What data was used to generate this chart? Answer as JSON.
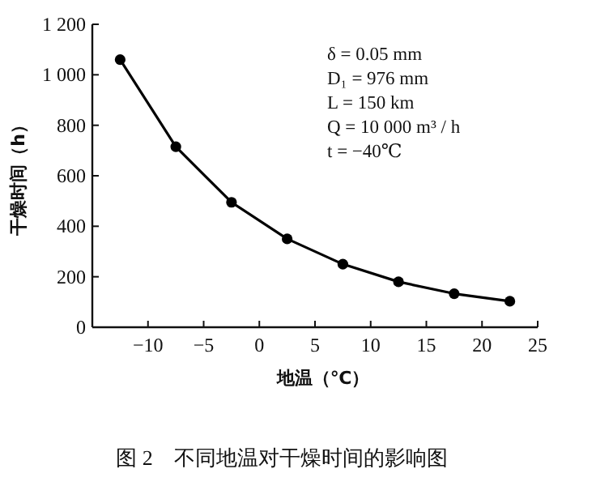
{
  "chart_data": {
    "type": "line",
    "title": "图 2　不同地温对干燥时间的影响图",
    "xlabel": "地温（℃）",
    "ylabel": "干燥时间（h）",
    "annotations": [
      "δ = 0.05 mm",
      "D₁ = 976 mm",
      "L = 150 km",
      "Q = 10 000 m³ / h",
      "t = −40℃"
    ],
    "x": [
      -12.5,
      -7.5,
      -2.5,
      2.5,
      7.5,
      12.5,
      17.5,
      22.5
    ],
    "series": [
      {
        "color": "#000000",
        "values": [
          1060,
          715,
          495,
          350,
          250,
          180,
          133,
          103
        ]
      }
    ],
    "marker": "circle",
    "xlim": [
      -15,
      25
    ],
    "xticks": [
      -10,
      -5,
      0,
      5,
      10,
      15,
      20,
      25
    ],
    "ylim": [
      0,
      1200
    ],
    "yticks": [
      0,
      200,
      400,
      600,
      800,
      {
        "value": 1000,
        "label": "1 000"
      },
      {
        "value": 1200,
        "label": "1 200"
      }
    ]
  }
}
